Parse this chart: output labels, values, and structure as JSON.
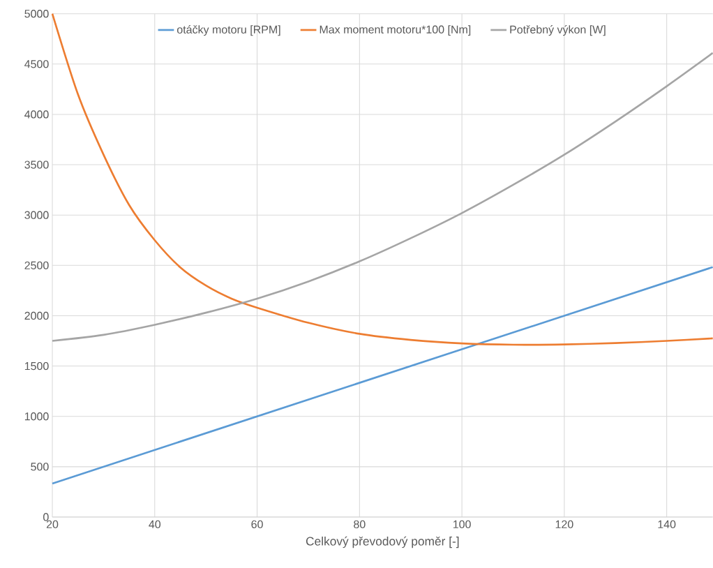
{
  "chart_data": {
    "type": "line",
    "xlabel": "Celkový převodový poměr [-]",
    "xlim": [
      20,
      149
    ],
    "xticks": [
      20,
      40,
      60,
      80,
      100,
      120,
      140
    ],
    "ylim": [
      0,
      5000
    ],
    "yticks": [
      0,
      500,
      1000,
      1500,
      2000,
      2500,
      3000,
      3500,
      4000,
      4500,
      5000
    ],
    "grid": true,
    "legend": "top",
    "marker": "none",
    "line_style": "solid",
    "series": [
      {
        "name": "otáčky motoru [RPM]",
        "color": "#5b9bd5",
        "x": [
          20,
          60,
          100,
          120,
          149
        ],
        "values": [
          333,
          1000,
          1667,
          2000,
          2483
        ]
      },
      {
        "name": "Max moment motoru*100 [Nm]",
        "color": "#ed7d31",
        "x": [
          20,
          25,
          30,
          35,
          40,
          45,
          50,
          55,
          60,
          70,
          80,
          90,
          100,
          110,
          120,
          130,
          140,
          149
        ],
        "values": [
          5000,
          4200,
          3600,
          3100,
          2750,
          2480,
          2300,
          2170,
          2080,
          1930,
          1820,
          1760,
          1725,
          1712,
          1715,
          1728,
          1750,
          1775
        ]
      },
      {
        "name": "Potřebný výkon [W]",
        "color": "#a5a5a5",
        "x": [
          20,
          30,
          40,
          50,
          60,
          70,
          80,
          90,
          100,
          110,
          120,
          130,
          140,
          149
        ],
        "values": [
          1750,
          1810,
          1910,
          2030,
          2170,
          2340,
          2540,
          2770,
          3020,
          3300,
          3600,
          3930,
          4280,
          4610
        ]
      }
    ]
  }
}
